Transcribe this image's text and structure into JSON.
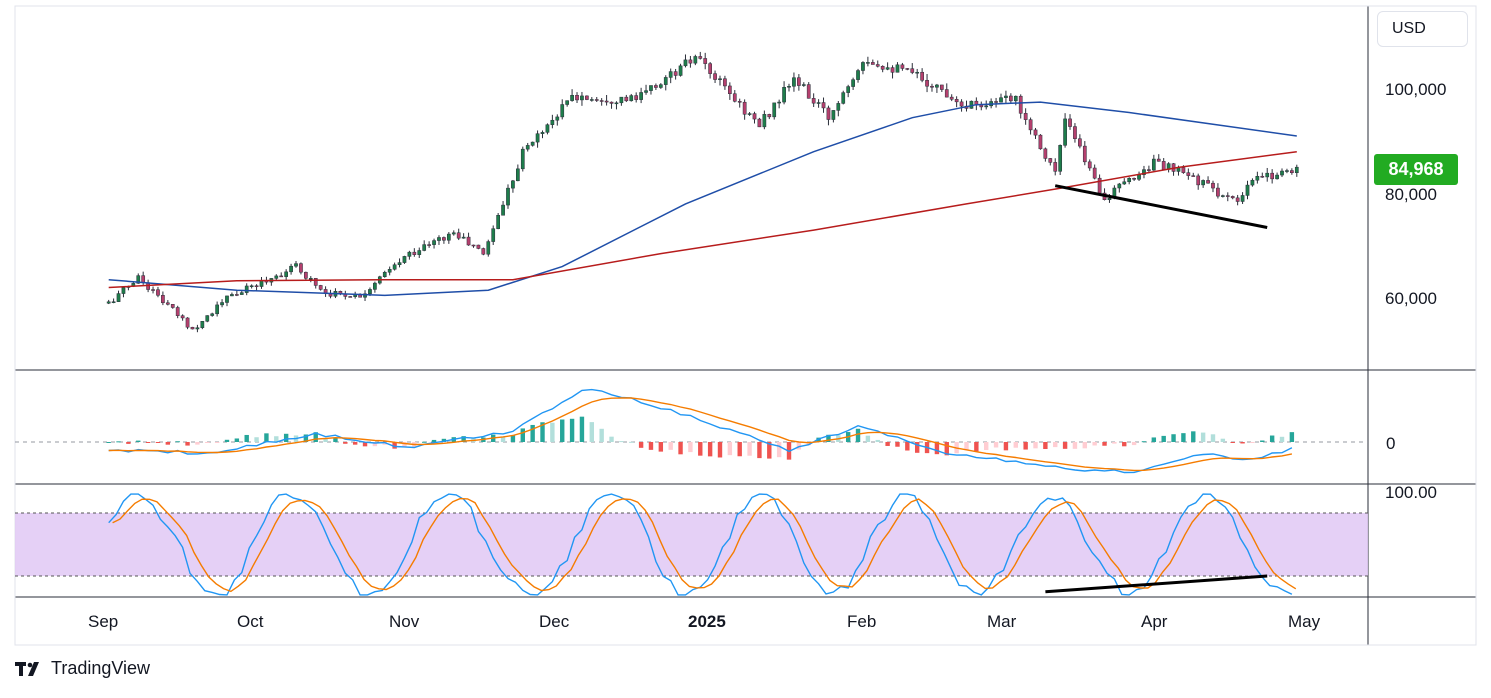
{
  "header": {
    "currency": "USD"
  },
  "brand": {
    "name": "TradingView",
    "logo_icon": "tradingview-logo-icon"
  },
  "colors": {
    "up": "#26a69a",
    "up_body": "#1e7d4b",
    "down": "#b5406e",
    "wick": "#2a2e39",
    "ma_fast": "#1f4ea8",
    "ma_slow": "#b71c1c",
    "macd_line": "#2196f3",
    "macd_signal": "#f57c00",
    "hist_up_strong": "#26a69a",
    "hist_up_weak": "#b2dfdb",
    "hist_down_strong": "#ef5350",
    "hist_down_weak": "#ffcdd2",
    "stoch_k": "#2196f3",
    "stoch_d": "#f57c00",
    "stoch_band": "#e1c8f5",
    "price_badge": "#22ab22",
    "trendline": "#000000"
  },
  "chart_data": [
    {
      "type": "candlestick",
      "title": "",
      "y_tick_labels": [
        "100,000",
        "80,000",
        "60,000"
      ],
      "x_tick_labels": [
        "Sep",
        "Oct",
        "Nov",
        "Dec",
        "2025",
        "Feb",
        "Mar",
        "Apr",
        "May"
      ],
      "ylim": [
        48000,
        115000
      ],
      "last_price": "84,968",
      "approx_daily_close_anchors": [
        [
          "2024-08-20",
          59000
        ],
        [
          "2024-08-26",
          64000
        ],
        [
          "2024-09-06",
          54000
        ],
        [
          "2024-09-13",
          60000
        ],
        [
          "2024-09-20",
          63000
        ],
        [
          "2024-09-27",
          66000
        ],
        [
          "2024-10-03",
          61000
        ],
        [
          "2024-10-10",
          60500
        ],
        [
          "2024-10-20",
          68500
        ],
        [
          "2024-10-29",
          72500
        ],
        [
          "2024-11-04",
          68500
        ],
        [
          "2024-11-12",
          88000
        ],
        [
          "2024-11-22",
          98500
        ],
        [
          "2024-12-05",
          98000
        ],
        [
          "2024-12-17",
          106000
        ],
        [
          "2024-12-30",
          93000
        ],
        [
          "2025-01-06",
          102000
        ],
        [
          "2025-01-13",
          94500
        ],
        [
          "2025-01-20",
          106000
        ],
        [
          "2025-01-31",
          102500
        ],
        [
          "2025-02-10",
          97000
        ],
        [
          "2025-02-20",
          98000
        ],
        [
          "2025-02-28",
          84000
        ],
        [
          "2025-03-02",
          94000
        ],
        [
          "2025-03-10",
          79000
        ],
        [
          "2025-03-20",
          86000
        ],
        [
          "2025-03-28",
          83000
        ],
        [
          "2025-04-06",
          78000
        ],
        [
          "2025-04-09",
          82500
        ],
        [
          "2025-04-18",
          84968
        ]
      ],
      "series": [
        {
          "name": "",
          "indicator": "moving average (fast)",
          "points": [
            [
              "2024-08-20",
              63500
            ],
            [
              "2024-09-15",
              61500
            ],
            [
              "2024-10-15",
              60500
            ],
            [
              "2024-11-05",
              61500
            ],
            [
              "2024-11-20",
              66000
            ],
            [
              "2024-12-15",
              78000
            ],
            [
              "2025-01-10",
              88000
            ],
            [
              "2025-01-30",
              94500
            ],
            [
              "2025-02-12",
              97000
            ],
            [
              "2025-02-25",
              97500
            ],
            [
              "2025-03-15",
              95500
            ],
            [
              "2025-04-18",
              91000
            ]
          ]
        },
        {
          "name": "",
          "indicator": "moving average (slow)",
          "points": [
            [
              "2024-08-20",
              62000
            ],
            [
              "2024-09-15",
              63300
            ],
            [
              "2024-10-15",
              63500
            ],
            [
              "2024-11-10",
              63500
            ],
            [
              "2024-12-10",
              68500
            ],
            [
              "2025-01-10",
              73000
            ],
            [
              "2025-02-10",
              78000
            ],
            [
              "2025-03-01",
              81000
            ],
            [
              "2025-03-25",
              85000
            ],
            [
              "2025-04-18",
              88000
            ]
          ]
        }
      ],
      "trendline": [
        [
          "2025-02-28",
          81500
        ],
        [
          "2025-04-12",
          73500
        ]
      ]
    },
    {
      "type": "macd",
      "title": "",
      "zero_label": "0",
      "macd_shape": [
        [
          "2024-08-20",
          -0.15
        ],
        [
          "2024-09-10",
          -0.2
        ],
        [
          "2024-10-01",
          0.15
        ],
        [
          "2024-10-20",
          -0.1
        ],
        [
          "2024-11-10",
          0.2
        ],
        [
          "2024-11-25",
          1.0
        ],
        [
          "2024-12-15",
          0.5
        ],
        [
          "2025-01-05",
          -0.15
        ],
        [
          "2025-01-20",
          0.3
        ],
        [
          "2025-02-05",
          -0.2
        ],
        [
          "2025-03-05",
          -0.5
        ],
        [
          "2025-03-15",
          -0.55
        ],
        [
          "2025-03-31",
          -0.2
        ],
        [
          "2025-04-08",
          -0.35
        ],
        [
          "2025-04-18",
          -0.1
        ]
      ]
    },
    {
      "type": "stochastic_rsi",
      "title": "",
      "top_label": "100.00",
      "band": [
        20,
        80
      ],
      "trendline": [
        [
          "2025-02-26",
          5
        ],
        [
          "2025-04-12",
          20
        ]
      ]
    }
  ]
}
